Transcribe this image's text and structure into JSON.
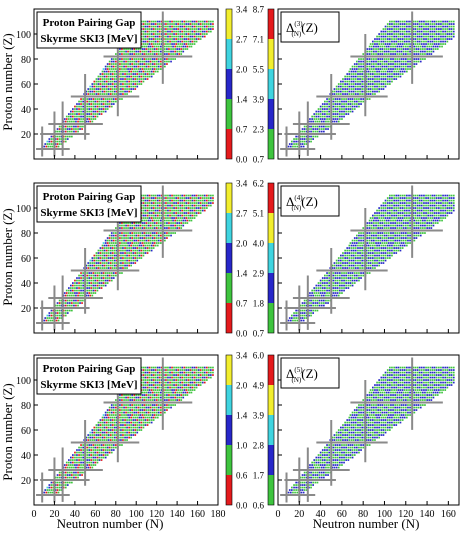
{
  "figure": {
    "ylabel": "Proton number (Z)",
    "xlabel": "Neutron number (N)"
  },
  "axes": {
    "x_ticks": [
      "0",
      "20",
      "40",
      "60",
      "80",
      "100",
      "120",
      "140",
      "160",
      "180"
    ],
    "x_ticks_right": [
      "0",
      "20",
      "40",
      "60",
      "80",
      "100",
      "120",
      "140",
      "160"
    ],
    "y_ticks": [
      "20",
      "40",
      "60",
      "80",
      "100"
    ]
  },
  "colors": {
    "red": "#e41a1c",
    "green": "#3ec43e",
    "blue": "#2727c9",
    "cyan": "#3fd4e0",
    "yellow": "#f2ee2e",
    "magic_lines": "#8a8a8a"
  },
  "chart_data": [
    {
      "type": "heatmap",
      "panel": "row1-left",
      "legend_line1": "Proton Pairing Gap",
      "legend_line2": "Skyrme SKI3 [MeV]",
      "colorbar_ticks": [
        "0.0",
        "0.7",
        "1.4",
        "2.0",
        "2.7",
        "3.4"
      ],
      "colorbar_colors": [
        "red",
        "green",
        "blue",
        "cyan",
        "yellow"
      ],
      "xlim": [
        0,
        180
      ],
      "ylim": [
        0,
        120
      ],
      "magic_numbers": {
        "N": [
          8,
          20,
          28,
          50,
          82,
          126
        ],
        "Z": [
          8,
          20,
          28,
          50,
          82
        ]
      }
    },
    {
      "type": "heatmap",
      "panel": "row1-right",
      "label_base": "Δ",
      "label_sup": "(3)",
      "label_sub": "(N)",
      "label_tail": "(Z)",
      "colorbar_ticks": [
        "0.7",
        "2.3",
        "3.9",
        "5.5",
        "7.1",
        "8.7"
      ],
      "colorbar_colors": [
        "green",
        "blue",
        "cyan",
        "yellow",
        "red"
      ],
      "xlim": [
        0,
        170
      ],
      "ylim": [
        0,
        120
      ],
      "magic_numbers": {
        "N": [
          8,
          20,
          28,
          50,
          82,
          126
        ],
        "Z": [
          8,
          20,
          28,
          50,
          82
        ]
      }
    },
    {
      "type": "heatmap",
      "panel": "row2-left",
      "legend_line1": "Proton Pairing Gap",
      "legend_line2": "Skyrme SKI3 [MeV]",
      "colorbar_ticks": [
        "0.0",
        "0.7",
        "1.4",
        "2.0",
        "2.7",
        "3.4"
      ],
      "colorbar_colors": [
        "red",
        "green",
        "blue",
        "cyan",
        "yellow"
      ],
      "xlim": [
        0,
        180
      ],
      "ylim": [
        0,
        120
      ],
      "magic_numbers": {
        "N": [
          8,
          20,
          28,
          50,
          82,
          126
        ],
        "Z": [
          8,
          20,
          28,
          50,
          82
        ]
      }
    },
    {
      "type": "heatmap",
      "panel": "row2-right",
      "label_base": "Δ",
      "label_sup": "(4)",
      "label_sub": "(N)",
      "label_tail": "(Z)",
      "colorbar_ticks": [
        "0.7",
        "1.8",
        "2.9",
        "4.0",
        "5.1",
        "6.2"
      ],
      "colorbar_colors": [
        "green",
        "blue",
        "cyan",
        "yellow",
        "red"
      ],
      "xlim": [
        0,
        170
      ],
      "ylim": [
        0,
        120
      ],
      "magic_numbers": {
        "N": [
          8,
          20,
          28,
          50,
          82,
          126
        ],
        "Z": [
          8,
          20,
          28,
          50,
          82
        ]
      }
    },
    {
      "type": "heatmap",
      "panel": "row3-left",
      "legend_line1": "Proton Pairing Gap",
      "legend_line2": "Skyrme SKI3 [MeV]",
      "colorbar_ticks": [
        "0.0",
        "0.6",
        "1.0",
        "1.4",
        "2.0",
        "3.4"
      ],
      "colorbar_colors": [
        "red",
        "green",
        "blue",
        "cyan",
        "yellow"
      ],
      "xlim": [
        0,
        180
      ],
      "ylim": [
        0,
        120
      ],
      "magic_numbers": {
        "N": [
          8,
          20,
          28,
          50,
          82,
          126
        ],
        "Z": [
          8,
          20,
          28,
          50,
          82
        ]
      }
    },
    {
      "type": "heatmap",
      "panel": "row3-right",
      "label_base": "Δ",
      "label_sup": "(5)",
      "label_sub": "(N)",
      "label_tail": "(Z)",
      "colorbar_ticks": [
        "0.6",
        "1.7",
        "2.8",
        "3.9",
        "4.9",
        "6.0"
      ],
      "colorbar_colors": [
        "green",
        "blue",
        "cyan",
        "yellow",
        "red"
      ],
      "xlim": [
        0,
        170
      ],
      "ylim": [
        0,
        120
      ],
      "magic_numbers": {
        "N": [
          8,
          20,
          28,
          50,
          82,
          126
        ],
        "Z": [
          8,
          20,
          28,
          50,
          82
        ]
      }
    }
  ]
}
